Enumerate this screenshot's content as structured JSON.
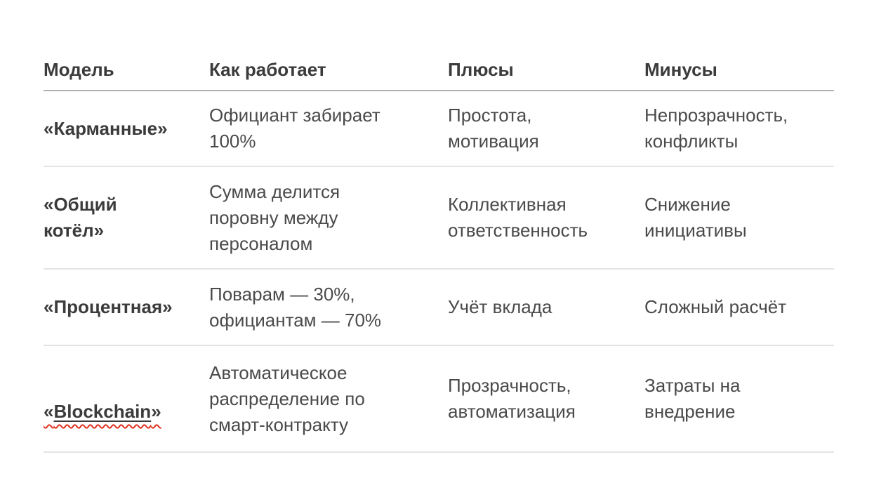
{
  "document": {
    "table": {
      "headers": [
        "Модель",
        "Как работает",
        "Плюсы",
        "Минусы"
      ],
      "rows": [
        {
          "model": "«Карманные»",
          "how": "Официант забирает\n100%",
          "pros": "Простота,\nмотивация",
          "cons": "Непрозрачность,\nконфликты"
        },
        {
          "model": "«Общий\nкотёл»",
          "how": "Сумма делится\nпоровну между\nперсоналом",
          "pros": "Коллективная\nответственность",
          "cons": "Снижение\nинициативы"
        },
        {
          "model": "«Процентная»",
          "how": "Поварам — 30%,\nофициантам — 70%",
          "pros": "Учёт вклада",
          "cons": "Сложный расчёт"
        },
        {
          "model_parts": {
            "open": "«",
            "word": "Blockchain",
            "close": "»"
          },
          "how": "Автоматическое\nраспределение по\nсмарт-контракту",
          "pros": "Прозрачность,\nавтоматизация",
          "cons": "Затраты на\nвнедрение"
        }
      ]
    },
    "colors": {
      "heading_text": "#3b3b3b",
      "body_text": "#4a4a4a",
      "header_divider": "#b0b0b0",
      "row_divider": "#e4e4e4",
      "spellcheck_underline": "#e0301e"
    }
  }
}
